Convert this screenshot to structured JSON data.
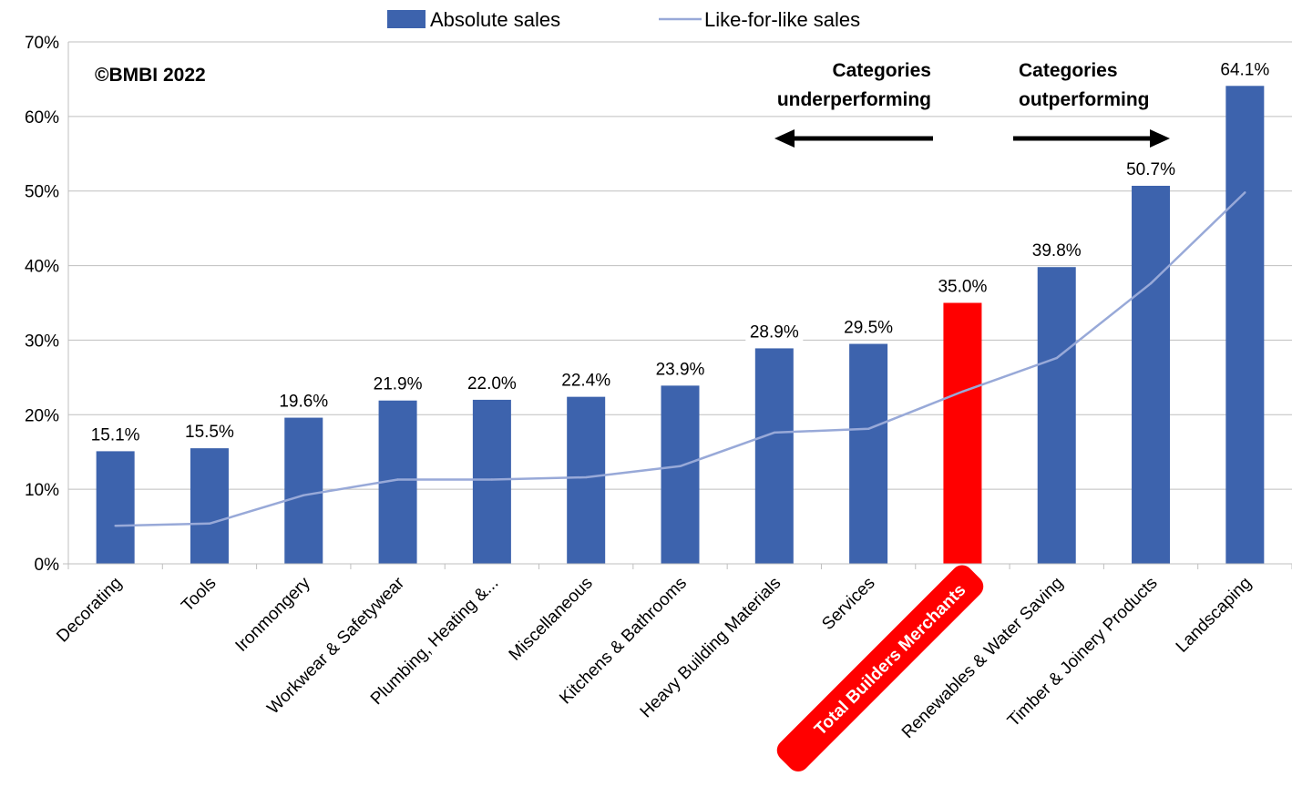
{
  "copyright": "©BMBI 2022",
  "annotations": {
    "left_line1": "Categories",
    "left_line2": "underperforming",
    "right_line1": "Categories",
    "right_line2": "outperforming"
  },
  "colors": {
    "bar": "#3d63ad",
    "highlight": "#ff0000",
    "line": "#98a9d8",
    "grid": "#bfbfbf"
  },
  "chart_data": {
    "type": "bar",
    "categories": [
      "Decorating",
      "Tools",
      "Ironmongery",
      "Workwear & Safetywear",
      "Plumbing, Heating &...",
      "Miscellaneous",
      "Kitchens & Bathrooms",
      "Heavy Building Materials",
      "Services",
      "Total Builders Merchants",
      "Renewables & Water Saving",
      "Timber & Joinery Products",
      "Landscaping"
    ],
    "series": [
      {
        "name": "Absolute sales",
        "type": "bar",
        "values": [
          15.1,
          15.5,
          19.6,
          21.9,
          22.0,
          22.4,
          23.9,
          28.9,
          29.5,
          35.0,
          39.8,
          50.7,
          64.1
        ],
        "data_labels": [
          "15.1%",
          "15.5%",
          "19.6%",
          "21.9%",
          "22.0%",
          "22.4%",
          "23.9%",
          "28.9%",
          "29.5%",
          "35.0%",
          "39.8%",
          "50.7%",
          "64.1%"
        ]
      },
      {
        "name": "Like-for-like sales",
        "type": "line",
        "values": [
          5.1,
          5.4,
          9.2,
          11.3,
          11.3,
          11.6,
          13.1,
          17.6,
          18.1,
          23.1,
          27.6,
          37.6,
          49.8
        ]
      }
    ],
    "highlight_category": "Total Builders Merchants",
    "y_ticks": [
      "0%",
      "10%",
      "20%",
      "30%",
      "40%",
      "50%",
      "60%",
      "70%"
    ],
    "ylim": [
      0,
      70
    ],
    "grid": true,
    "legend_position": "top"
  }
}
